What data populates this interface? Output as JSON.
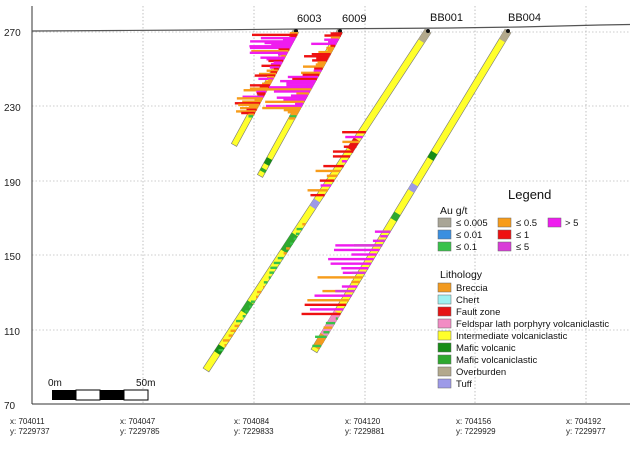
{
  "y_axis": {
    "ticks": [
      "270",
      "230",
      "190",
      "150",
      "110",
      "70"
    ]
  },
  "x_axis": {
    "ticks": [
      {
        "x": "x: 704011",
        "y": "y: 7229737"
      },
      {
        "x": "x: 704047",
        "y": "y: 7229785"
      },
      {
        "x": "x: 704084",
        "y": "y: 7229833"
      },
      {
        "x": "x: 704120",
        "y": "y: 7229881"
      },
      {
        "x": "x: 704156",
        "y": "y: 7229929"
      },
      {
        "x": "x: 704192",
        "y": "y: 7229977"
      }
    ]
  },
  "holes": [
    {
      "name": "6003"
    },
    {
      "name": "6009"
    },
    {
      "name": "BB001"
    },
    {
      "name": "BB004"
    }
  ],
  "legend": {
    "title": "Legend",
    "au_title": "Au g/t",
    "au_items": [
      {
        "label": "≤ 0.005",
        "color": "#a9a596"
      },
      {
        "label": "≤ 0.01",
        "color": "#3a8fe0"
      },
      {
        "label": "≤ 0.1",
        "color": "#38c24a"
      },
      {
        "label": "≤ 0.5",
        "color": "#f79c1a"
      },
      {
        "label": "≤ 1",
        "color": "#ee1111"
      },
      {
        "label": "≤ 5",
        "color": "#d93bd8"
      },
      {
        "label": "> 5",
        "color": "#ef1cef"
      }
    ],
    "lith_title": "Lithology",
    "lith_items": [
      {
        "label": "Breccia",
        "color": "#f29a1f"
      },
      {
        "label": "Chert",
        "color": "#9ef1f1"
      },
      {
        "label": "Fault zone",
        "color": "#e61414"
      },
      {
        "label": "Feldspar lath porphyry volcaniclastic",
        "color": "#f28cc4"
      },
      {
        "label": "Intermediate volcaniclastic",
        "color": "#ffff2a"
      },
      {
        "label": "Mafic volcanic",
        "color": "#178c17"
      },
      {
        "label": "Mafic volcaniclastic",
        "color": "#2ea82e"
      },
      {
        "label": "Overburden",
        "color": "#b3a98c"
      },
      {
        "label": "Tuff",
        "color": "#9d9ae8"
      }
    ]
  },
  "scale_bar": {
    "start_label": "0m",
    "end_label": "50m"
  }
}
